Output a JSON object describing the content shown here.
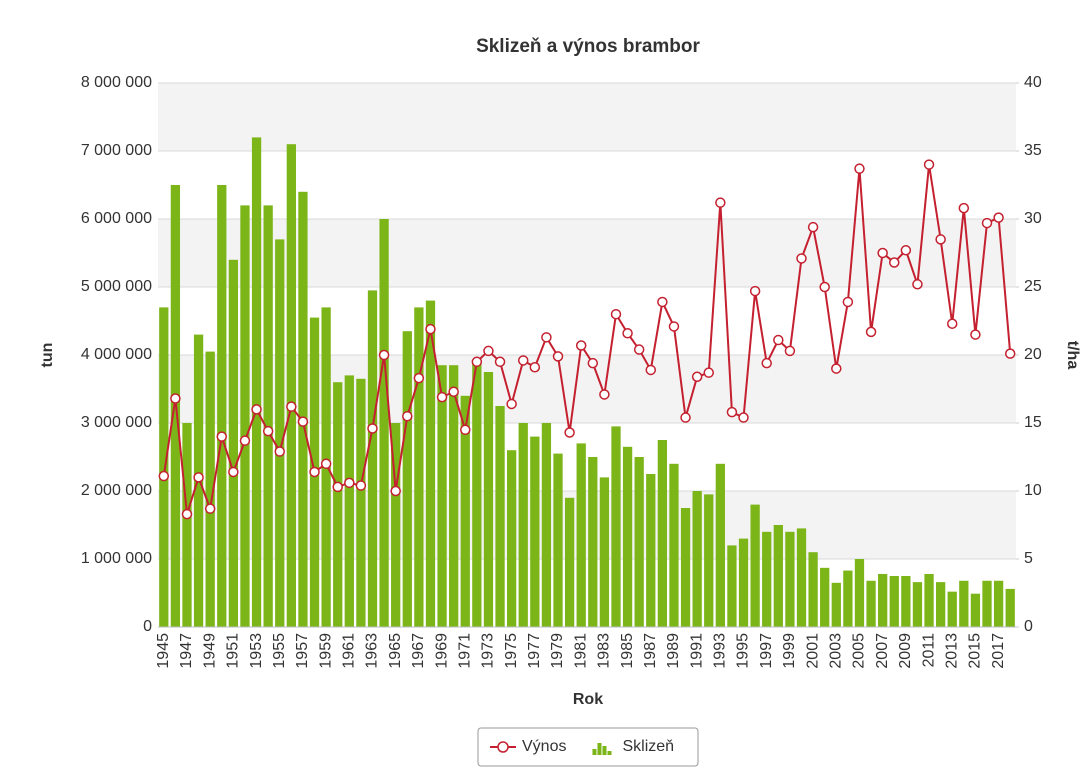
{
  "chart_data": {
    "type": "bar",
    "title": "Sklizeň a výnos brambor",
    "x_label": "Rok",
    "y_label": "tun",
    "y2_label": "t/ha",
    "categories": [
      "1945",
      null,
      "1947",
      null,
      "1949",
      null,
      "1951",
      null,
      "1953",
      null,
      "1955",
      null,
      "1957",
      null,
      "1959",
      null,
      "1961",
      null,
      "1963",
      null,
      "1965",
      null,
      "1967",
      null,
      "1969",
      null,
      "1971",
      null,
      "1973",
      null,
      "1975",
      null,
      "1977",
      null,
      "1979",
      null,
      "1981",
      null,
      "1983",
      null,
      "1985",
      null,
      "1987",
      null,
      "1989",
      null,
      "1991",
      null,
      "1993",
      null,
      "1995",
      null,
      "1997",
      null,
      "1999",
      null,
      "2001",
      null,
      "2003",
      null,
      "2005",
      null,
      "2007",
      null,
      "2009",
      null,
      "2011",
      null,
      "2013",
      null,
      "2015",
      null,
      "2017",
      null
    ],
    "series": [
      {
        "name": "Výnos",
        "type": "line",
        "axis": "y2",
        "color": "#c4202f",
        "values": [
          11.1,
          16.8,
          8.3,
          11.0,
          8.7,
          14.0,
          11.4,
          13.7,
          16.0,
          14.4,
          12.9,
          16.2,
          15.1,
          11.4,
          12.0,
          10.3,
          10.6,
          10.4,
          14.6,
          20.0,
          10.0,
          15.5,
          18.3,
          21.9,
          16.9,
          17.3,
          14.5,
          19.5,
          20.3,
          19.5,
          16.4,
          19.6,
          19.1,
          21.3,
          19.9,
          14.3,
          20.7,
          19.4,
          17.1,
          23.0,
          21.6,
          20.4,
          18.9,
          23.9,
          22.1,
          15.4,
          18.4,
          18.7,
          31.2,
          15.8,
          15.4,
          24.7,
          19.4,
          21.1,
          20.3,
          27.1,
          29.4,
          25.0,
          19.0,
          23.9,
          33.7,
          21.7,
          27.5,
          26.8,
          27.7,
          25.2,
          34.0,
          28.5,
          22.3,
          30.8,
          21.5,
          29.7,
          30.1,
          20.1
        ]
      },
      {
        "name": "Sklizeň",
        "type": "bar",
        "color": "#7cb518",
        "values": [
          4700000,
          6500000,
          3000000,
          4300000,
          4050000,
          6500000,
          5400000,
          6200000,
          7200000,
          6200000,
          5700000,
          7100000,
          6400000,
          4550000,
          4700000,
          3600000,
          3700000,
          3650000,
          4950000,
          6000000,
          3000000,
          4350000,
          4700000,
          4800000,
          3850000,
          3850000,
          3400000,
          3900000,
          3750000,
          3250000,
          2600000,
          3000000,
          2800000,
          3000000,
          2550000,
          1900000,
          2700000,
          2500000,
          2200000,
          2950000,
          2650000,
          2500000,
          2250000,
          2750000,
          2400000,
          1750000,
          2000000,
          1950000,
          2400000,
          1200000,
          1300000,
          1800000,
          1400000,
          1500000,
          1400000,
          1450000,
          1100000,
          870000,
          650000,
          830000,
          1000000,
          680000,
          780000,
          750000,
          750000,
          660000,
          780000,
          660000,
          520000,
          680000,
          490000,
          680000,
          680000,
          560000
        ]
      }
    ],
    "ylim": [
      0,
      8000000
    ],
    "yticks": [
      {
        "value": 0,
        "label": "0"
      },
      {
        "value": 1000000,
        "label": "1 000 000"
      },
      {
        "value": 2000000,
        "label": "2 000 000"
      },
      {
        "value": 3000000,
        "label": "3 000 000"
      },
      {
        "value": 4000000,
        "label": "4 000 000"
      },
      {
        "value": 5000000,
        "label": "5 000 000"
      },
      {
        "value": 6000000,
        "label": "6 000 000"
      },
      {
        "value": 7000000,
        "label": "7 000 000"
      },
      {
        "value": 8000000,
        "label": "8 000 000"
      }
    ],
    "y2lim": [
      0,
      40
    ],
    "y2ticks": [
      0,
      5,
      10,
      15,
      20,
      25,
      30,
      35,
      40
    ],
    "grid": true,
    "legend": "bottom"
  }
}
